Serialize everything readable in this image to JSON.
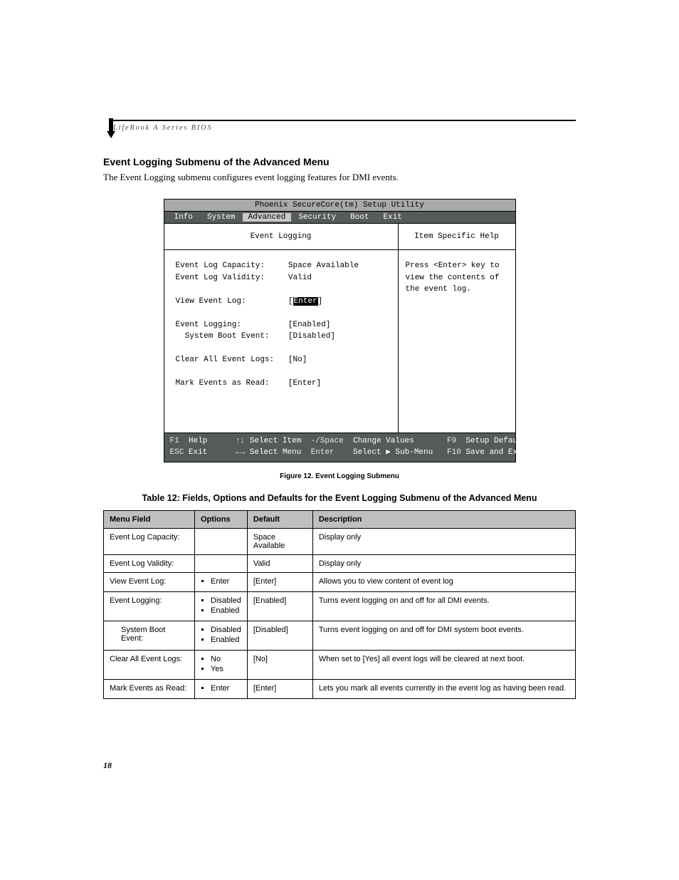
{
  "header": {
    "product_line": "LifeBook A Series BIOS"
  },
  "section": {
    "title": "Event Logging Submenu of the Advanced Menu",
    "intro": "The Event Logging submenu configures event logging features for DMI events."
  },
  "bios": {
    "utility_title": "Phoenix SecureCore(tm) Setup Utility",
    "menu": {
      "items": [
        "Info",
        "System",
        "Advanced",
        "Security",
        "Boot",
        "Exit"
      ],
      "active": "Advanced"
    },
    "panel_title": "Event Logging",
    "help_title": "Item Specific Help",
    "help_text": "Press <Enter> key to view the contents of the event log.",
    "fields": {
      "capacity_label": "Event Log Capacity:",
      "capacity_value": "Space Available",
      "validity_label": "Event Log Validity:",
      "validity_value": "Valid",
      "view_label": "View Event Log:",
      "view_value": "Enter",
      "logging_label": "Event Logging:",
      "logging_value": "[Enabled]",
      "boot_label": "System Boot Event:",
      "boot_value": "[Disabled]",
      "clear_label": "Clear All Event Logs:",
      "clear_value": "[No]",
      "mark_label": "Mark Events as Read:",
      "mark_value": "[Enter]"
    },
    "footer": {
      "f1": "F1",
      "help": "Help",
      "updown": "↑↓",
      "select_item": "Select Item",
      "minus_space": "-/Space",
      "change_values": "Change Values",
      "f9": "F9",
      "setup_defaults": "Setup Defaults",
      "esc": "ESC",
      "exit": "Exit",
      "leftright": "←→",
      "select_menu": "Select Menu",
      "enter": "Enter",
      "select_sub": "Select ▶ Sub-Menu",
      "f10": "F10",
      "save_exit": "Save and Exit"
    }
  },
  "figure_caption": "Figure 12.  Event Logging Submenu",
  "table": {
    "title": "Table 12: Fields, Options and Defaults for the Event Logging Submenu of the Advanced Menu",
    "headers": [
      "Menu Field",
      "Options",
      "Default",
      "Description"
    ],
    "rows": [
      {
        "field": "Event Log Capacity:",
        "indent": false,
        "options": [],
        "default": "Space Available",
        "desc": "Display only"
      },
      {
        "field": "Event Log Validity:",
        "indent": false,
        "options": [],
        "default": "Valid",
        "desc": "Display only"
      },
      {
        "field": "View Event Log:",
        "indent": false,
        "options": [
          "Enter"
        ],
        "default": "[Enter]",
        "desc": "Allows you to view content of event log"
      },
      {
        "field": "Event Logging:",
        "indent": false,
        "options": [
          "Disabled",
          "Enabled"
        ],
        "default": "[Enabled]",
        "desc": "Turns event logging on and off for all DMI events."
      },
      {
        "field": "System Boot Event:",
        "indent": true,
        "options": [
          "Disabled",
          "Enabled"
        ],
        "default": "[Disabled]",
        "desc": "Turns event logging on and off for DMI system boot events."
      },
      {
        "field": "Clear All Event Logs:",
        "indent": false,
        "options": [
          "No",
          "Yes"
        ],
        "default": "[No]",
        "desc": "When set to [Yes] all event logs will be cleared at next boot."
      },
      {
        "field": "Mark Events as Read:",
        "indent": false,
        "options": [
          "Enter"
        ],
        "default": "[Enter]",
        "desc": "Lets you mark all events currently in the event log as having been read."
      }
    ]
  },
  "page_number": "18"
}
